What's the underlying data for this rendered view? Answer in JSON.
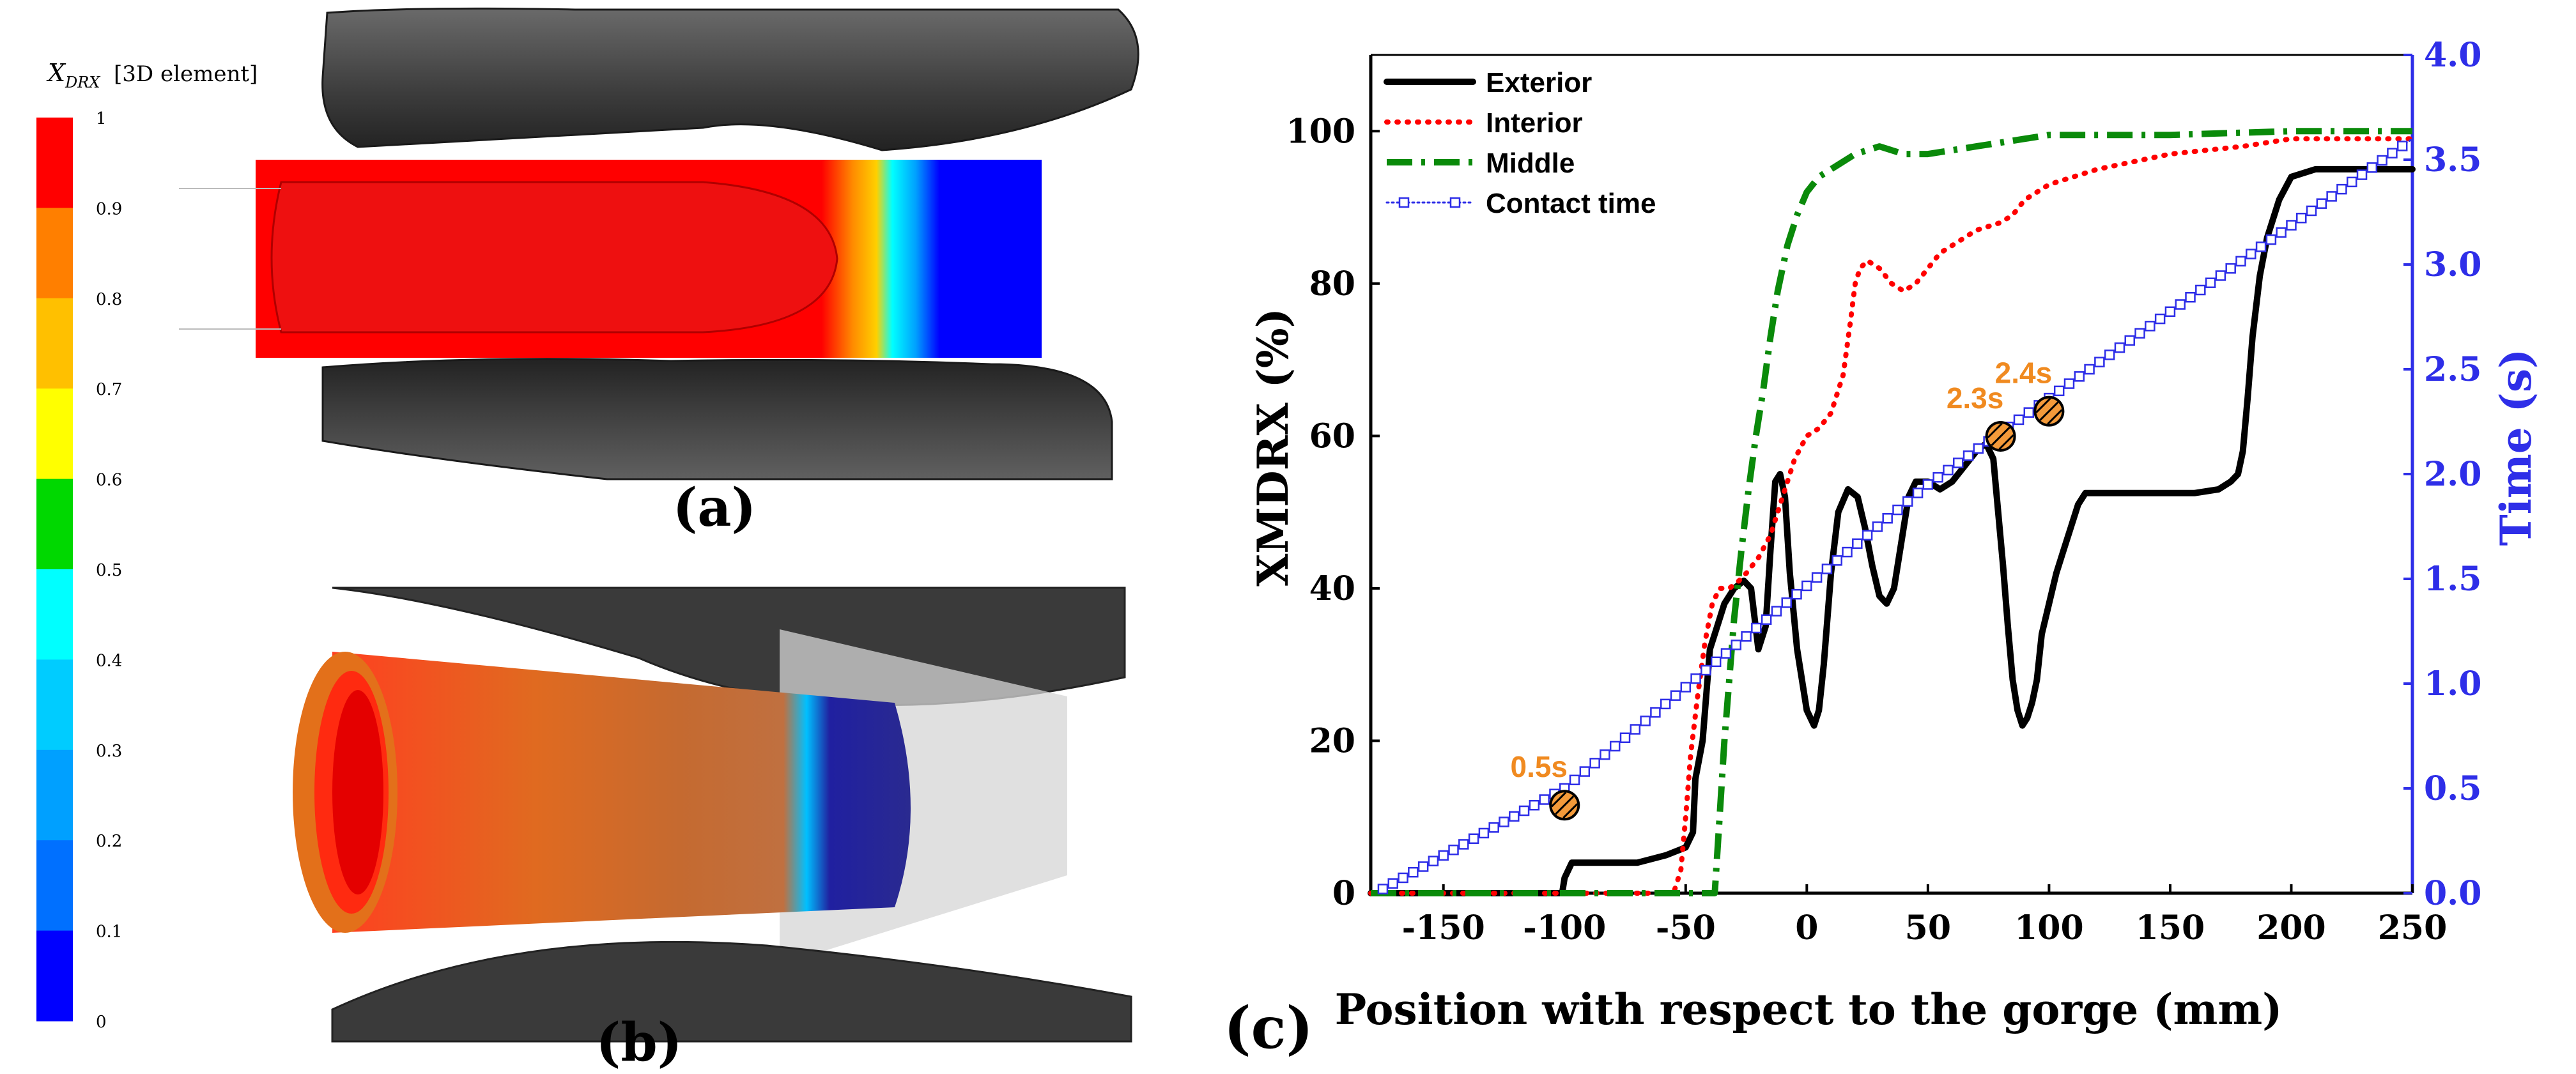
{
  "colorbar": {
    "title_symbol": "X",
    "title_subscript": "DRX",
    "title_suffix": "[3D element]",
    "ticks": [
      "1",
      "0.9",
      "0.8",
      "0.7",
      "0.6",
      "0.5",
      "0.4",
      "0.3",
      "0.2",
      "0.1",
      "0"
    ],
    "colors": [
      "#ff0000",
      "#ff7f00",
      "#ffc000",
      "#ffff00",
      "#00d800",
      "#00ffff",
      "#00ccff",
      "#00a0ff",
      "#0070ff",
      "#0000ff"
    ]
  },
  "panels": {
    "a": "(a)",
    "b": "(b)",
    "c": "(c)"
  },
  "chart_data": {
    "type": "line",
    "title": "",
    "xlabel": "Position with respect to the gorge (mm)",
    "ylabel": "XMDRX (%)",
    "y2label": "Time (s)",
    "xlim": [
      -180,
      250
    ],
    "ylim": [
      0,
      110
    ],
    "y2lim": [
      0,
      4
    ],
    "xticks": [
      "-150",
      "-100",
      "-50",
      "0",
      "50",
      "100",
      "150",
      "200",
      "250"
    ],
    "yticks": [
      "0",
      "20",
      "40",
      "60",
      "80",
      "100"
    ],
    "y2ticks": [
      "0.0",
      "0.5",
      "1.0",
      "1.5",
      "2.0",
      "2.5",
      "3.0",
      "3.5",
      "4.0"
    ],
    "legend_position": "top-left",
    "series": [
      {
        "name": "Exterior",
        "color": "#000000",
        "style": "solid",
        "axis": "left",
        "x": [
          -180,
          -101,
          -100,
          -97,
          -90,
          -70,
          -58,
          -50,
          -47,
          -46,
          -43,
          -40,
          -37,
          -34,
          -30,
          -26,
          -23,
          -20,
          -17,
          -15,
          -13,
          -11,
          -9,
          -7,
          -4,
          0,
          3,
          5,
          7,
          10,
          13,
          17,
          21,
          24,
          27,
          30,
          33,
          36,
          39,
          42,
          45,
          47,
          50,
          55,
          60,
          65,
          70,
          74,
          77,
          79,
          81,
          83,
          85,
          87,
          89,
          91,
          93,
          95,
          97,
          100,
          103,
          106,
          109,
          112,
          115,
          120,
          140,
          160,
          170,
          175,
          178,
          180,
          182,
          184,
          187,
          190,
          195,
          200,
          210,
          240,
          250
        ],
        "y": [
          0,
          0,
          2,
          4,
          4,
          4,
          5,
          6,
          8,
          15,
          20,
          32,
          35,
          38,
          40,
          41,
          40,
          32,
          35,
          45,
          54,
          55,
          52,
          42,
          32,
          24,
          22,
          24,
          30,
          42,
          50,
          53,
          52,
          48,
          43,
          39,
          38,
          40,
          46,
          52,
          54,
          54,
          54,
          53,
          54,
          56,
          58,
          59,
          57,
          50,
          43,
          35,
          28,
          24,
          22,
          23,
          25,
          28,
          34,
          38,
          42,
          45,
          48,
          51,
          52.5,
          52.5,
          52.5,
          52.5,
          53,
          54,
          55,
          58,
          65,
          73,
          81,
          86,
          91,
          94,
          95,
          95,
          95
        ]
      },
      {
        "name": "Interior",
        "color": "#ff0000",
        "style": "dotted",
        "axis": "left",
        "x": [
          -180,
          -55,
          -52,
          -50,
          -48,
          -45,
          -42,
          -39,
          -36,
          -32,
          -28,
          -25,
          -20,
          -15,
          -10,
          -5,
          0,
          5,
          10,
          15,
          18,
          20,
          22,
          25,
          30,
          35,
          40,
          45,
          50,
          55,
          60,
          70,
          80,
          85,
          90,
          100,
          120,
          150,
          180,
          200,
          250
        ],
        "y": [
          0,
          0,
          3,
          10,
          18,
          26,
          33,
          38,
          40,
          40,
          41,
          42,
          44,
          47,
          52,
          57,
          60,
          61,
          63,
          68,
          75,
          80,
          82,
          83,
          82,
          80,
          79,
          80,
          82,
          84,
          85,
          87,
          88,
          89,
          91,
          93,
          95,
          97,
          98,
          99,
          99
        ]
      },
      {
        "name": "Middle",
        "color": "#0a8a0a",
        "style": "dashdot",
        "axis": "left",
        "x": [
          -180,
          -38,
          -36,
          -34,
          -32,
          -30,
          -27,
          -24,
          -21,
          -18,
          -15,
          -12,
          -8,
          -4,
          0,
          5,
          10,
          15,
          20,
          25,
          30,
          40,
          50,
          60,
          70,
          80,
          90,
          100,
          110,
          120,
          150,
          200,
          250
        ],
        "y": [
          0,
          0,
          10,
          20,
          28,
          36,
          45,
          53,
          60,
          66,
          73,
          79,
          85,
          89,
          92,
          94,
          95,
          96,
          97,
          97.5,
          98,
          97,
          97,
          97.5,
          98,
          98.5,
          99,
          99.5,
          99.5,
          99.5,
          99.5,
          100,
          100
        ]
      },
      {
        "name": "Contact time",
        "color": "#2e2ee8",
        "style": "dotted-square",
        "axis": "right",
        "x": [
          -175,
          -100,
          50,
          250
        ],
        "y": [
          0.02,
          0.5,
          1.95,
          3.6
        ]
      }
    ],
    "annotations": [
      {
        "label": "0.5s",
        "x": -100,
        "y2": 0.42
      },
      {
        "label": "2.3s",
        "x": 80,
        "y2": 2.18
      },
      {
        "label": "2.4s",
        "x": 100,
        "y2": 2.3
      }
    ]
  }
}
